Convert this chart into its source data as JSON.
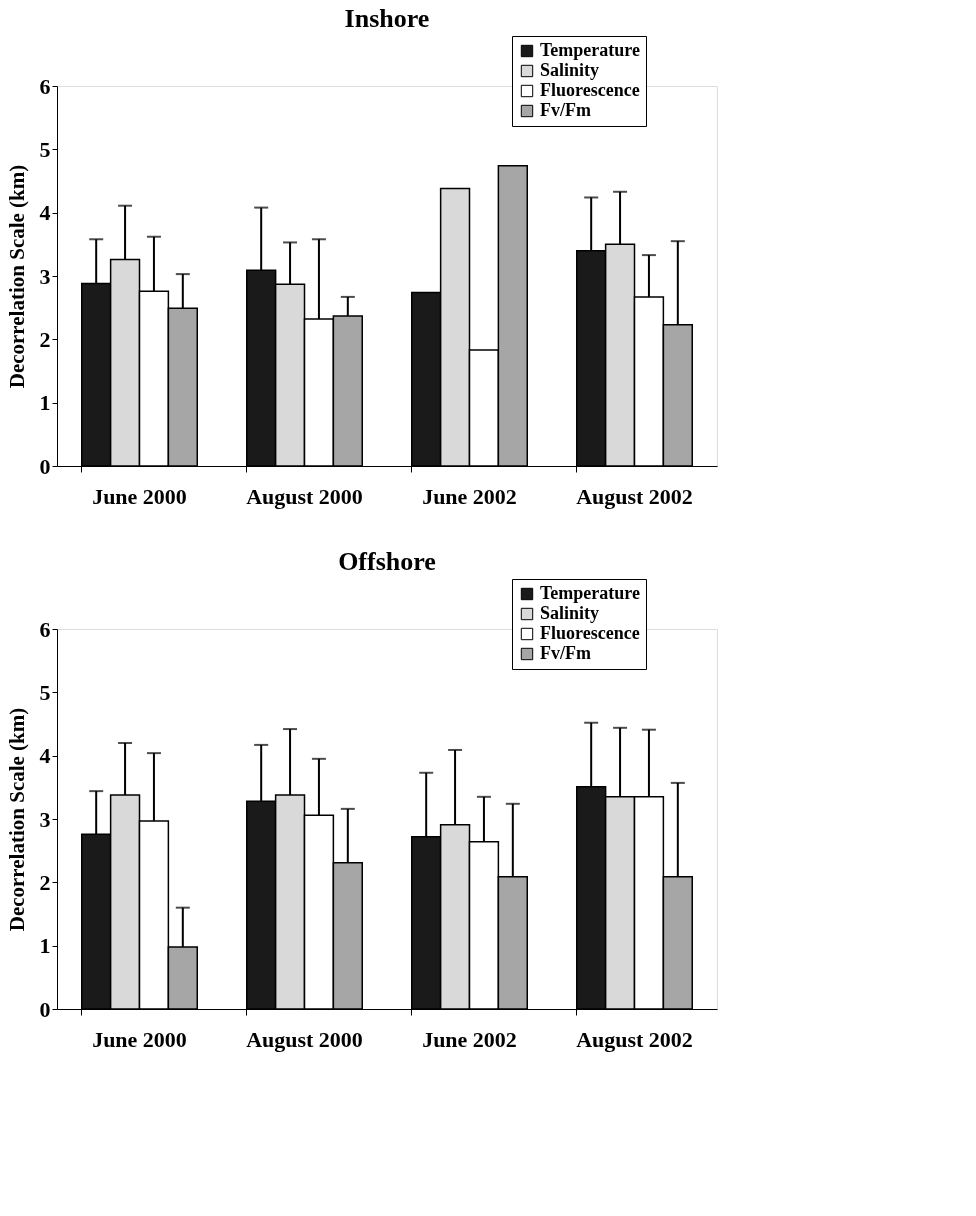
{
  "chart_data": [
    {
      "type": "bar",
      "title": "Inshore",
      "ylabel": "Decorrelation Scale (km)",
      "categories": [
        "June 2000",
        "August 2000",
        "June 2002",
        "August 2002"
      ],
      "ylim": [
        0,
        6
      ],
      "yticks": [
        0,
        1,
        2,
        3,
        4,
        5,
        6
      ],
      "grid": false,
      "legend": "top right",
      "series": [
        {
          "name": "Temperature",
          "color": "#1a1a1a",
          "values": [
            2.88,
            3.09,
            2.74,
            3.4
          ],
          "errors": [
            [
              2.88,
              3.58
            ],
            [
              3.09,
              4.08
            ],
            null,
            [
              3.4,
              4.24
            ]
          ]
        },
        {
          "name": "Salinity",
          "color": "#d9d9d9",
          "values": [
            3.26,
            2.87,
            4.38,
            3.5
          ],
          "errors": [
            [
              3.26,
              4.11
            ],
            [
              2.87,
              3.53
            ],
            null,
            [
              3.5,
              4.33
            ]
          ]
        },
        {
          "name": "Fluorescence",
          "color": "#ffffff",
          "values": [
            2.76,
            2.32,
            1.83,
            2.67
          ],
          "errors": [
            [
              2.76,
              3.62
            ],
            [
              2.32,
              3.58
            ],
            null,
            [
              2.67,
              3.33
            ]
          ]
        },
        {
          "name": "Fv/Fm",
          "color": "#a6a6a6",
          "values": [
            2.49,
            2.37,
            4.74,
            2.23
          ],
          "errors": [
            [
              2.49,
              3.03
            ],
            [
              2.37,
              2.67
            ],
            null,
            [
              2.23,
              3.55
            ]
          ]
        }
      ]
    },
    {
      "type": "bar",
      "title": "Offshore",
      "ylabel": "Decorrelation Scale (km)",
      "categories": [
        "June 2000",
        "August 2000",
        "June 2002",
        "August 2002"
      ],
      "ylim": [
        0,
        6
      ],
      "yticks": [
        0,
        1,
        2,
        3,
        4,
        5,
        6
      ],
      "grid": false,
      "legend": "top right",
      "series": [
        {
          "name": "Temperature",
          "color": "#1a1a1a",
          "values": [
            2.76,
            3.28,
            2.72,
            3.51
          ],
          "errors": [
            [
              2.76,
              3.44
            ],
            [
              3.28,
              4.17
            ],
            [
              2.72,
              3.73
            ],
            [
              3.51,
              4.52
            ]
          ]
        },
        {
          "name": "Salinity",
          "color": "#d9d9d9",
          "values": [
            3.38,
            3.38,
            2.91,
            3.35
          ],
          "errors": [
            [
              3.38,
              4.2
            ],
            [
              3.38,
              4.42
            ],
            [
              2.91,
              4.09
            ],
            [
              3.35,
              4.44
            ]
          ]
        },
        {
          "name": "Fluorescence",
          "color": "#ffffff",
          "values": [
            2.97,
            3.06,
            2.64,
            3.35
          ],
          "errors": [
            [
              2.97,
              4.04
            ],
            [
              3.06,
              3.95
            ],
            [
              2.64,
              3.35
            ],
            [
              3.35,
              4.41
            ]
          ]
        },
        {
          "name": "Fv/Fm",
          "color": "#a6a6a6",
          "values": [
            0.98,
            2.31,
            2.09,
            2.09
          ],
          "errors": [
            [
              0.98,
              1.6
            ],
            [
              2.31,
              3.16
            ],
            [
              2.09,
              3.24
            ],
            [
              2.09,
              3.57
            ]
          ]
        }
      ]
    }
  ]
}
